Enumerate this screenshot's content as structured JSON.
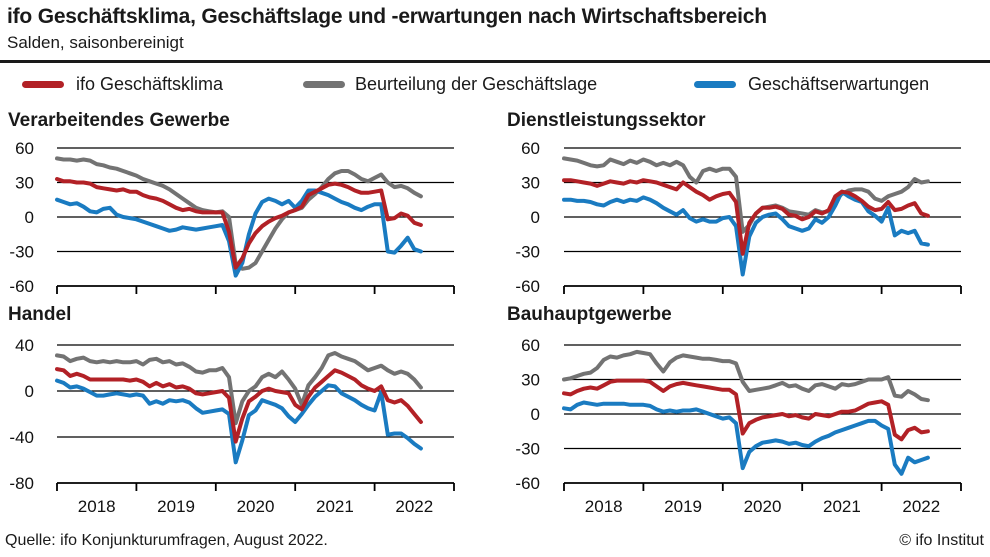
{
  "header": {
    "title": "ifo Geschäftsklima, Geschäftslage und -erwartungen nach Wirtschaftsbereich",
    "subtitle": "Salden, saisonbereinigt"
  },
  "legend": [
    {
      "label": "ifo Geschäftsklima",
      "color": "#b22126"
    },
    {
      "label": "Beurteilung der Geschäftslage",
      "color": "#737373"
    },
    {
      "label": "Geschäftserwartungen",
      "color": "#1a7bc1"
    }
  ],
  "footer": {
    "source": "Quelle:  ifo Konjunkturumfragen,  August 2022.",
    "credit": "© ifo Institut"
  },
  "chart_data": [
    {
      "type": "line",
      "title": "Verarbeitendes Gewerbe",
      "x_start": "2018-01",
      "x_end": "2022-08",
      "x_unit": "month",
      "ylim": [
        -60,
        60
      ],
      "yticks": [
        60,
        30,
        0,
        -30,
        -60
      ],
      "xtick_labels": [],
      "series": [
        {
          "name": "ifo Geschäftsklima",
          "color": "#b22126",
          "values": [
            33,
            31,
            31,
            30,
            30,
            29,
            26,
            25,
            24,
            23,
            24,
            22,
            22,
            19,
            17,
            16,
            14,
            11,
            8,
            6,
            7,
            5,
            4,
            4,
            4,
            4,
            -13,
            -44,
            -36,
            -23,
            -14,
            -8,
            -4,
            -1,
            1,
            4,
            6,
            9,
            19,
            22,
            25,
            28,
            29,
            28,
            26,
            23,
            21,
            21,
            22,
            23,
            -2,
            -1,
            3,
            1,
            -5,
            -7
          ]
        },
        {
          "name": "Beurteilung der Geschäftslage",
          "color": "#737373",
          "values": [
            51,
            50,
            50,
            49,
            50,
            49,
            46,
            45,
            43,
            42,
            40,
            38,
            36,
            33,
            31,
            29,
            27,
            24,
            20,
            16,
            12,
            8,
            6,
            5,
            4,
            5,
            0,
            -41,
            -45,
            -44,
            -40,
            -30,
            -20,
            -10,
            -2,
            4,
            6,
            8,
            15,
            20,
            26,
            33,
            38,
            40,
            40,
            37,
            33,
            31,
            34,
            37,
            30,
            26,
            27,
            25,
            21,
            18
          ]
        },
        {
          "name": "Geschäftserwartungen",
          "color": "#1a7bc1",
          "values": [
            15,
            13,
            11,
            12,
            9,
            5,
            4,
            7,
            8,
            2,
            0,
            -1,
            -2,
            -4,
            -6,
            -8,
            -10,
            -12,
            -11,
            -9,
            -10,
            -11,
            -10,
            -9,
            -8,
            -7,
            -21,
            -51,
            -40,
            -15,
            3,
            13,
            16,
            14,
            11,
            14,
            8,
            14,
            23,
            23,
            21,
            19,
            16,
            13,
            11,
            8,
            6,
            9,
            11,
            11,
            -30,
            -31,
            -25,
            -18,
            -28,
            -30
          ]
        }
      ]
    },
    {
      "type": "line",
      "title": "Dienstleistungssektor",
      "x_start": "2018-01",
      "x_end": "2022-08",
      "x_unit": "month",
      "ylim": [
        -60,
        60
      ],
      "yticks": [
        60,
        30,
        0,
        -30,
        -60
      ],
      "xtick_labels": [],
      "series": [
        {
          "name": "ifo Geschäftsklima",
          "color": "#b22126",
          "values": [
            32,
            32,
            31,
            30,
            29,
            27,
            29,
            31,
            30,
            29,
            31,
            30,
            32,
            31,
            30,
            28,
            26,
            24,
            30,
            26,
            22,
            19,
            15,
            18,
            20,
            21,
            13,
            -32,
            -5,
            3,
            8,
            8,
            9,
            7,
            2,
            1,
            -2,
            0,
            5,
            3,
            6,
            18,
            22,
            21,
            18,
            14,
            9,
            6,
            7,
            13,
            6,
            7,
            10,
            12,
            3,
            1
          ]
        },
        {
          "name": "Beurteilung der Geschäftslage",
          "color": "#737373",
          "values": [
            51,
            50,
            49,
            47,
            45,
            44,
            45,
            50,
            48,
            46,
            49,
            47,
            50,
            48,
            45,
            47,
            45,
            48,
            45,
            35,
            30,
            40,
            42,
            40,
            42,
            42,
            35,
            -13,
            -7,
            3,
            8,
            9,
            10,
            8,
            5,
            4,
            3,
            2,
            6,
            4,
            5,
            15,
            20,
            23,
            24,
            24,
            22,
            16,
            14,
            18,
            20,
            22,
            26,
            33,
            30,
            31
          ]
        },
        {
          "name": "Geschäftserwartungen",
          "color": "#1a7bc1",
          "values": [
            15,
            15,
            14,
            14,
            13,
            11,
            10,
            13,
            15,
            13,
            15,
            14,
            17,
            15,
            12,
            8,
            5,
            2,
            6,
            -1,
            -4,
            -2,
            -4,
            -4,
            -1,
            0,
            -8,
            -50,
            -17,
            -5,
            0,
            2,
            3,
            -2,
            -8,
            -10,
            -12,
            -10,
            -2,
            -5,
            0,
            10,
            22,
            18,
            15,
            13,
            5,
            1,
            -4,
            8,
            -16,
            -12,
            -14,
            -12,
            -23,
            -24
          ]
        }
      ]
    },
    {
      "type": "line",
      "title": "Handel",
      "x_start": "2018-01",
      "x_end": "2022-08",
      "x_unit": "month",
      "ylim": [
        -80,
        40
      ],
      "yticks": [
        40,
        0,
        -40,
        -80
      ],
      "xtick_labels": [
        "2018",
        "2019",
        "2020",
        "2021",
        "2022"
      ],
      "series": [
        {
          "name": "ifo Geschäftsklima",
          "color": "#b22126",
          "values": [
            19,
            18,
            13,
            15,
            13,
            10,
            10,
            10,
            10,
            10,
            10,
            9,
            10,
            8,
            4,
            7,
            4,
            6,
            3,
            4,
            2,
            -2,
            -3,
            -2,
            -1,
            0,
            -6,
            -44,
            -24,
            -9,
            -5,
            0,
            2,
            0,
            -1,
            -2,
            -12,
            -16,
            -5,
            3,
            8,
            13,
            18,
            16,
            13,
            10,
            5,
            2,
            0,
            4,
            -8,
            -10,
            -8,
            -13,
            -20,
            -27
          ]
        },
        {
          "name": "Beurteilung der Geschäftslage",
          "color": "#737373",
          "values": [
            31,
            30,
            26,
            28,
            29,
            26,
            25,
            26,
            25,
            26,
            25,
            25,
            26,
            23,
            27,
            28,
            25,
            26,
            23,
            24,
            21,
            17,
            16,
            18,
            18,
            20,
            12,
            -28,
            -9,
            0,
            4,
            12,
            15,
            12,
            17,
            10,
            2,
            -12,
            5,
            12,
            20,
            31,
            33,
            30,
            28,
            26,
            22,
            18,
            20,
            22,
            18,
            15,
            17,
            15,
            10,
            3
          ]
        },
        {
          "name": "Geschäftserwartungen",
          "color": "#1a7bc1",
          "values": [
            9,
            7,
            3,
            4,
            2,
            -1,
            -4,
            -4,
            -3,
            -2,
            -3,
            -4,
            -3,
            -4,
            -11,
            -9,
            -11,
            -8,
            -9,
            -8,
            -10,
            -15,
            -19,
            -18,
            -17,
            -16,
            -20,
            -62,
            -43,
            -21,
            -17,
            -8,
            -10,
            -12,
            -15,
            -22,
            -27,
            -20,
            -12,
            -5,
            0,
            5,
            4,
            -2,
            -5,
            -8,
            -12,
            -15,
            -17,
            -1,
            -38,
            -37,
            -37,
            -41,
            -46,
            -50
          ]
        }
      ]
    },
    {
      "type": "line",
      "title": "Bauhauptgewerbe",
      "x_start": "2018-01",
      "x_end": "2022-08",
      "x_unit": "month",
      "ylim": [
        -60,
        60
      ],
      "yticks": [
        60,
        30,
        0,
        -30,
        -60
      ],
      "xtick_labels": [
        "2018",
        "2019",
        "2020",
        "2021",
        "2022"
      ],
      "series": [
        {
          "name": "ifo Geschäftsklima",
          "color": "#b22126",
          "values": [
            18,
            17,
            20,
            22,
            23,
            22,
            25,
            28,
            29,
            29,
            29,
            29,
            29,
            28,
            24,
            20,
            24,
            26,
            27,
            26,
            25,
            24,
            23,
            22,
            21,
            21,
            17,
            -17,
            -8,
            -5,
            -3,
            -2,
            -1,
            0,
            -2,
            -1,
            -3,
            -4,
            0,
            -1,
            -2,
            0,
            2,
            2,
            3,
            6,
            9,
            10,
            11,
            8,
            -18,
            -22,
            -14,
            -12,
            -16,
            -15
          ]
        },
        {
          "name": "Beurteilung der Geschäftslage",
          "color": "#737373",
          "values": [
            30,
            31,
            33,
            35,
            36,
            40,
            47,
            50,
            49,
            51,
            52,
            54,
            53,
            52,
            44,
            37,
            45,
            49,
            51,
            50,
            49,
            48,
            48,
            47,
            46,
            46,
            44,
            28,
            20,
            21,
            22,
            23,
            25,
            27,
            24,
            25,
            22,
            20,
            25,
            26,
            24,
            22,
            26,
            25,
            26,
            28,
            30,
            30,
            30,
            32,
            16,
            15,
            20,
            17,
            13,
            12
          ]
        },
        {
          "name": "Geschäftserwartungen",
          "color": "#1a7bc1",
          "values": [
            5,
            4,
            8,
            10,
            9,
            8,
            9,
            9,
            9,
            9,
            8,
            8,
            8,
            7,
            4,
            2,
            3,
            2,
            3,
            3,
            4,
            2,
            0,
            -2,
            -4,
            -3,
            -8,
            -47,
            -33,
            -28,
            -25,
            -24,
            -23,
            -24,
            -26,
            -25,
            -27,
            -28,
            -24,
            -21,
            -19,
            -16,
            -14,
            -12,
            -10,
            -8,
            -6,
            -6,
            -10,
            -13,
            -44,
            -52,
            -38,
            -42,
            -40,
            -38
          ]
        }
      ]
    }
  ]
}
